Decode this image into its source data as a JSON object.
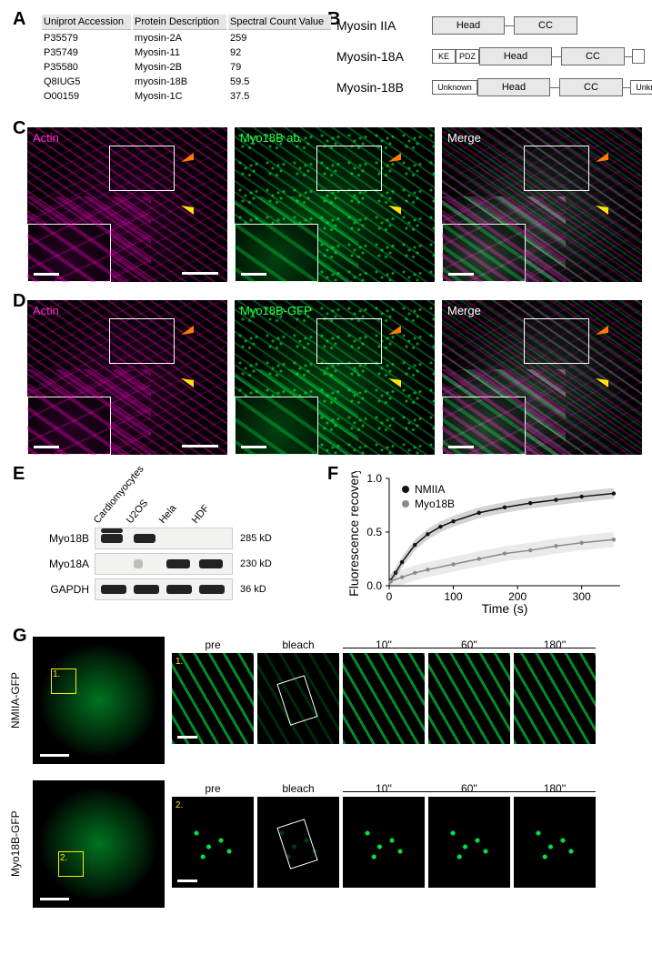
{
  "panelA": {
    "headers": [
      "Uniprot Accession",
      "Protein Description",
      "Spectral Count Value"
    ],
    "rows": [
      [
        "P35579",
        "myosin-2A",
        "259"
      ],
      [
        "P35749",
        "Myosin-11",
        "92"
      ],
      [
        "P35580",
        "Myosin-2B",
        "79"
      ],
      [
        "Q8IUG5",
        "myosin-18B",
        "59.5"
      ],
      [
        "O00159",
        "Myosin-1C",
        "37.5"
      ]
    ]
  },
  "panelB": {
    "rows": [
      {
        "label": "Myosin IIA",
        "pre": [],
        "head": "Head",
        "cc": "CC",
        "post": []
      },
      {
        "label": "Myosin-18A",
        "pre": [
          "KE",
          "PDZ"
        ],
        "head": "Head",
        "cc": "CC",
        "post": [
          ""
        ]
      },
      {
        "label": "Myosin-18B",
        "pre": [
          "Unknown"
        ],
        "head": "Head",
        "cc": "CC",
        "post": [
          "Unknown"
        ]
      }
    ]
  },
  "panelC": {
    "labels": {
      "actin": "Actin",
      "mid": "Myo18B ab",
      "merge": "Merge"
    },
    "colors": {
      "actin": "#ff2ad4",
      "mid": "#2bff4a",
      "merge": "#ffffff"
    }
  },
  "panelD": {
    "labels": {
      "actin": "Actin",
      "mid": "Myo18B-GFP",
      "merge": "Merge"
    },
    "colors": {
      "actin": "#ff2ad4",
      "mid": "#2bff4a",
      "merge": "#ffffff"
    }
  },
  "panelE": {
    "lanes": [
      "Cardiomyocytes",
      "U2OS",
      "Hela",
      "HDF"
    ],
    "rows": [
      {
        "name": "Myo18B",
        "size": "285 kD",
        "bands": [
          {
            "lane": 0,
            "w": 24,
            "int": 1,
            "double": true
          },
          {
            "lane": 1,
            "w": 24,
            "int": 1
          }
        ]
      },
      {
        "name": "Myo18A",
        "size": "230 kD",
        "bands": [
          {
            "lane": 1,
            "w": 10,
            "int": 0.25
          },
          {
            "lane": 2,
            "w": 26,
            "int": 1
          },
          {
            "lane": 3,
            "w": 26,
            "int": 1
          }
        ]
      },
      {
        "name": "GAPDH",
        "size": "36 kD",
        "bands": [
          {
            "lane": 0,
            "w": 28,
            "int": 1
          },
          {
            "lane": 1,
            "w": 28,
            "int": 1
          },
          {
            "lane": 2,
            "w": 28,
            "int": 1
          },
          {
            "lane": 3,
            "w": 28,
            "int": 1
          }
        ]
      }
    ]
  },
  "panelF": {
    "type": "line",
    "xlabel": "Time (s)",
    "ylabel": "Fluorescence recovery",
    "xlim": [
      0,
      360
    ],
    "xticks": [
      0,
      100,
      200,
      300
    ],
    "ylim": [
      0,
      1.0
    ],
    "yticks": [
      0,
      0.5,
      1.0
    ],
    "series": [
      {
        "name": "NMIIA",
        "color": "#111111",
        "marker": "circle",
        "points": [
          [
            2,
            0.05
          ],
          [
            10,
            0.12
          ],
          [
            20,
            0.22
          ],
          [
            40,
            0.38
          ],
          [
            60,
            0.48
          ],
          [
            80,
            0.55
          ],
          [
            100,
            0.6
          ],
          [
            140,
            0.68
          ],
          [
            180,
            0.73
          ],
          [
            220,
            0.77
          ],
          [
            260,
            0.8
          ],
          [
            300,
            0.83
          ],
          [
            350,
            0.86
          ]
        ],
        "err": 0.05
      },
      {
        "name": "Myo18B",
        "color": "#8b8b8b",
        "marker": "circle",
        "points": [
          [
            2,
            0.04
          ],
          [
            20,
            0.08
          ],
          [
            40,
            0.12
          ],
          [
            60,
            0.15
          ],
          [
            100,
            0.2
          ],
          [
            140,
            0.25
          ],
          [
            180,
            0.3
          ],
          [
            220,
            0.33
          ],
          [
            260,
            0.37
          ],
          [
            300,
            0.4
          ],
          [
            350,
            0.43
          ]
        ],
        "err": 0.07
      }
    ],
    "legend_pos": "inside-top-left",
    "fontsize_label": 14,
    "fontsize_tick": 12,
    "background": "#ffffff",
    "axis_color": "#000000"
  },
  "panelG": {
    "rows": [
      {
        "side": "NMIIA-GFP",
        "roi_num": "1.",
        "thumbs": [
          "pre",
          "bleach",
          "10''",
          "60''",
          "180''"
        ]
      },
      {
        "side": "Myo18B-GFP",
        "roi_num": "2.",
        "thumbs": [
          "pre",
          "bleach",
          "10''",
          "60''",
          "180''"
        ]
      }
    ]
  },
  "labels": {
    "A": "A",
    "B": "B",
    "C": "C",
    "D": "D",
    "E": "E",
    "F": "F",
    "G": "G"
  }
}
